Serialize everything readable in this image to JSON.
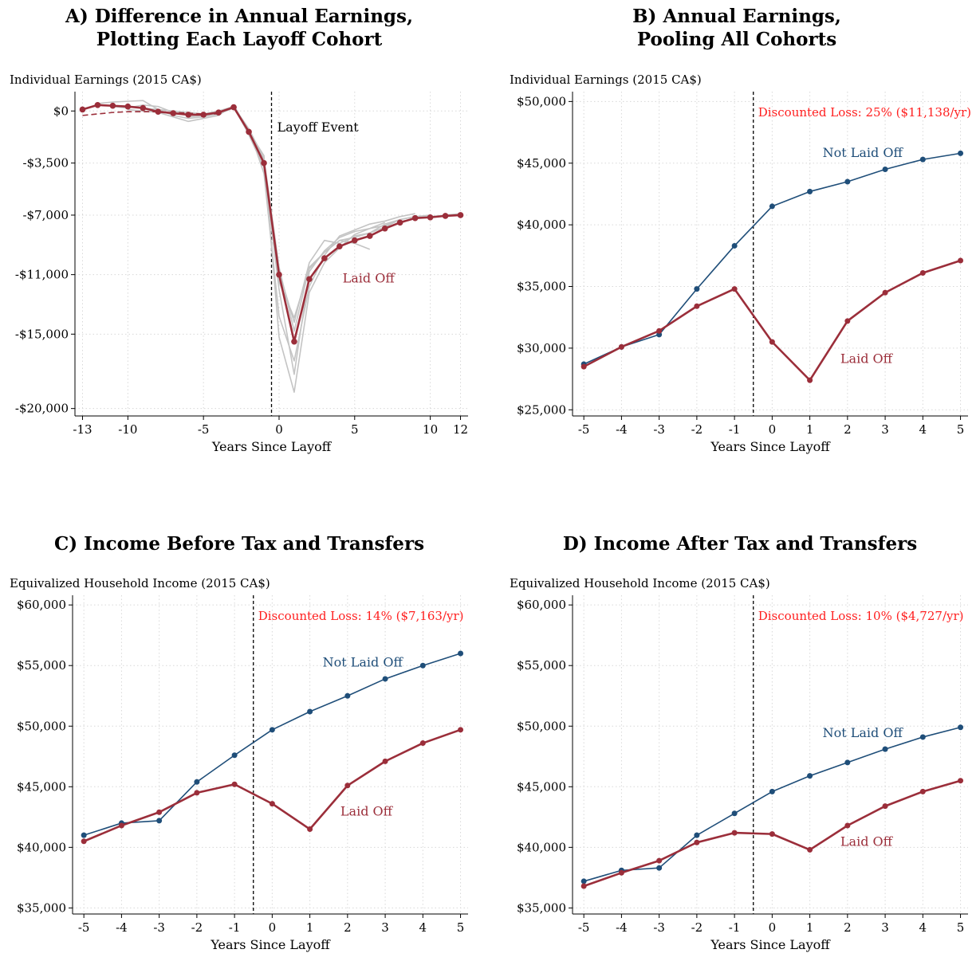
{
  "colors": {
    "not_laid_off": "#1f4e79",
    "laid_off": "#9b2e3a",
    "cohort": "#c4c4c4",
    "loss": "#ff1f1f",
    "grid": "#d8d8d8"
  },
  "panels": [
    {
      "title_line1": "A) Difference in Annual Earnings,",
      "title_line2": "Plotting Each Layoff Cohort",
      "ylabel": "Individual Earnings (2015 CA$)",
      "xlabel": "Years Since Layoff",
      "event_label": "Layoff Event",
      "series_label": "Laid Off"
    },
    {
      "title_line1": "B) Annual Earnings,",
      "title_line2": "Pooling All Cohorts",
      "ylabel": "Individual Earnings (2015 CA$)",
      "xlabel": "Years Since Layoff",
      "loss_label": "Discounted Loss: 25% ($11,138/yr)",
      "not_laid_off_label": "Not Laid Off",
      "laid_off_label": "Laid Off"
    },
    {
      "title_line1": "C) Income Before Tax and Transfers",
      "ylabel": "Equivalized Household Income (2015 CA$)",
      "xlabel": "Years Since Layoff",
      "loss_label": "Discounted Loss: 14% ($7,163/yr)",
      "not_laid_off_label": "Not Laid Off",
      "laid_off_label": "Laid Off"
    },
    {
      "title_line1": "D) Income After Tax and Transfers",
      "ylabel": "Equivalized Household Income (2015 CA$)",
      "xlabel": "Years Since Layoff",
      "loss_label": "Discounted Loss: 10% ($4,727/yr)",
      "not_laid_off_label": "Not Laid Off",
      "laid_off_label": "Laid Off"
    }
  ],
  "chart_data": [
    {
      "type": "line",
      "title": "A) Difference in Annual Earnings, Plotting Each Layoff Cohort",
      "ylabel": "Individual Earnings (2015 CA$)",
      "xlabel": "Years Since Layoff",
      "ylim": [
        -20500,
        1300
      ],
      "xlim": [
        -13.5,
        12.5
      ],
      "yticks": [
        0,
        -3500,
        -7000,
        -11000,
        -15000,
        -20000
      ],
      "ytick_labels": [
        "$0",
        "-$3,500",
        "-$7,000",
        "-$11,000",
        "-$15,000",
        "-$20,000"
      ],
      "xticks": [
        -13,
        -10,
        -5,
        0,
        5,
        10,
        12
      ],
      "event_x": -0.5,
      "series": [
        {
          "name": "Laid Off",
          "x": [
            -13,
            -12,
            -11,
            -10,
            -9,
            -8,
            -7,
            -6,
            -5,
            -4,
            -3,
            -2,
            -1,
            0,
            1,
            2,
            3,
            4,
            5,
            6,
            7,
            8,
            9,
            10,
            11,
            12
          ],
          "values": [
            100,
            400,
            350,
            300,
            200,
            -50,
            -150,
            -250,
            -250,
            -100,
            250,
            -1400,
            -3500,
            -11000,
            -15500,
            -11300,
            -9900,
            -9100,
            -8700,
            -8400,
            -7900,
            -7500,
            -7200,
            -7150,
            -7050,
            -7000
          ]
        },
        {
          "name": "trend",
          "x": [
            -13,
            -12,
            -11,
            -10,
            -9,
            -8,
            -7,
            -6,
            -5,
            -4
          ],
          "values": [
            -300,
            -200,
            -100,
            -50,
            -50,
            -50,
            -100,
            -150,
            -200,
            -200
          ]
        }
      ],
      "cohorts": [
        {
          "x": [
            -12,
            -11,
            -10,
            -9,
            -8,
            -7,
            -6,
            -5,
            -4,
            -3,
            -2,
            -1,
            0,
            1,
            2,
            3,
            4,
            5,
            6
          ],
          "values": [
            500,
            600,
            650,
            700,
            100,
            -300,
            -500,
            -400,
            -200,
            200,
            -1200,
            -3200,
            -10500,
            -14800,
            -10500,
            -9500,
            -8700,
            -8900,
            -9300
          ]
        },
        {
          "x": [
            -11,
            -10,
            -9,
            -8,
            -7,
            -6,
            -5,
            -4,
            -3,
            -2,
            -1,
            0,
            1,
            2,
            3,
            4,
            5,
            6,
            7
          ],
          "values": [
            300,
            200,
            400,
            300,
            -100,
            -200,
            -300,
            -100,
            300,
            -1600,
            -3800,
            -12000,
            -17700,
            -10800,
            -9400,
            -8500,
            -8100,
            -7900,
            -7500
          ]
        },
        {
          "x": [
            -10,
            -9,
            -8,
            -7,
            -6,
            -5,
            -4,
            -3,
            -2,
            -1,
            0,
            1,
            2,
            3,
            4,
            5,
            6,
            7,
            8
          ],
          "values": [
            100,
            0,
            -100,
            -400,
            -700,
            -500,
            -300,
            400,
            -1400,
            -3000,
            -15200,
            -18900,
            -12200,
            -10200,
            -9200,
            -8300,
            -7900,
            -7700,
            -7300
          ]
        },
        {
          "x": [
            -9,
            -8,
            -7,
            -6,
            -5,
            -4,
            -3,
            -2,
            -1,
            0,
            1,
            2,
            3,
            4,
            5,
            6,
            7,
            8,
            9
          ],
          "values": [
            200,
            100,
            0,
            -100,
            -200,
            0,
            300,
            -1200,
            -4200,
            -13800,
            -16800,
            -11800,
            -9700,
            -8400,
            -8000,
            -7600,
            -7400,
            -7100,
            -6900
          ]
        },
        {
          "x": [
            -8,
            -7,
            -6,
            -5,
            -4,
            -3,
            -2,
            -1,
            0,
            1,
            2,
            3,
            4,
            5,
            6,
            7,
            8,
            9,
            10
          ],
          "values": [
            0,
            -200,
            -200,
            -300,
            -150,
            250,
            -1500,
            -3600,
            -10800,
            -14200,
            -10200,
            -8700,
            -8900,
            -8400,
            -8200,
            -7800,
            -7300,
            -7100,
            -7000
          ]
        },
        {
          "x": [
            -6,
            -5,
            -4,
            -3,
            -2,
            -1,
            0,
            1,
            2,
            3,
            4,
            5,
            6,
            7,
            8,
            9,
            10,
            11,
            12
          ],
          "values": [
            -400,
            -300,
            -100,
            300,
            -1300,
            -3400,
            -11500,
            -13900,
            -10600,
            -9500,
            -8700,
            -8500,
            -8200,
            -7600,
            -7300,
            -7100,
            -7100,
            -7000,
            -6900
          ]
        }
      ]
    },
    {
      "type": "line",
      "title": "B) Annual Earnings, Pooling All Cohorts",
      "ylabel": "Individual Earnings (2015 CA$)",
      "xlabel": "Years Since Layoff",
      "ylim": [
        24500,
        50800
      ],
      "xlim": [
        -5.3,
        5.2
      ],
      "yticks": [
        25000,
        30000,
        35000,
        40000,
        45000,
        50000
      ],
      "ytick_labels": [
        "$25,000",
        "$30,000",
        "$35,000",
        "$40,000",
        "$45,000",
        "$50,000"
      ],
      "x": [
        -5,
        -4,
        -3,
        -2,
        -1,
        0,
        1,
        2,
        3,
        4,
        5
      ],
      "event_x": -0.5,
      "series": [
        {
          "name": "Not Laid Off",
          "values": [
            28700,
            30100,
            31100,
            34800,
            38300,
            41500,
            42700,
            43500,
            44500,
            45300,
            45800
          ]
        },
        {
          "name": "Laid Off",
          "values": [
            28500,
            30100,
            31400,
            33400,
            34800,
            30500,
            27400,
            32200,
            34500,
            36100,
            37100
          ]
        }
      ]
    },
    {
      "type": "line",
      "title": "C) Income Before Tax and Transfers",
      "ylabel": "Equivalized Household Income (2015 CA$)",
      "xlabel": "Years Since Layoff",
      "ylim": [
        34500,
        60800
      ],
      "xlim": [
        -5.3,
        5.2
      ],
      "yticks": [
        35000,
        40000,
        45000,
        50000,
        55000,
        60000
      ],
      "ytick_labels": [
        "$35,000",
        "$40,000",
        "$45,000",
        "$50,000",
        "$55,000",
        "$60,000"
      ],
      "x": [
        -5,
        -4,
        -3,
        -2,
        -1,
        0,
        1,
        2,
        3,
        4,
        5
      ],
      "event_x": -0.5,
      "series": [
        {
          "name": "Not Laid Off",
          "values": [
            41000,
            42000,
            42200,
            45400,
            47600,
            49700,
            51200,
            52500,
            53900,
            55000,
            56000
          ]
        },
        {
          "name": "Laid Off",
          "values": [
            40500,
            41800,
            42900,
            44500,
            45200,
            43600,
            41500,
            45100,
            47100,
            48600,
            49700
          ]
        }
      ]
    },
    {
      "type": "line",
      "title": "D) Income After Tax and Transfers",
      "ylabel": "Equivalized Household Income (2015 CA$)",
      "xlabel": "Years Since Layoff",
      "ylim": [
        34500,
        60800
      ],
      "xlim": [
        -5.3,
        5.2
      ],
      "yticks": [
        35000,
        40000,
        45000,
        50000,
        55000,
        60000
      ],
      "ytick_labels": [
        "$35,000",
        "$40,000",
        "$45,000",
        "$50,000",
        "$55,000",
        "$60,000"
      ],
      "x": [
        -5,
        -4,
        -3,
        -2,
        -1,
        0,
        1,
        2,
        3,
        4,
        5
      ],
      "event_x": -0.5,
      "series": [
        {
          "name": "Not Laid Off",
          "values": [
            37200,
            38100,
            38300,
            41000,
            42800,
            44600,
            45900,
            47000,
            48100,
            49100,
            49900
          ]
        },
        {
          "name": "Laid Off",
          "values": [
            36800,
            37900,
            38900,
            40400,
            41200,
            41100,
            39800,
            41800,
            43400,
            44600,
            45500
          ]
        }
      ]
    }
  ]
}
